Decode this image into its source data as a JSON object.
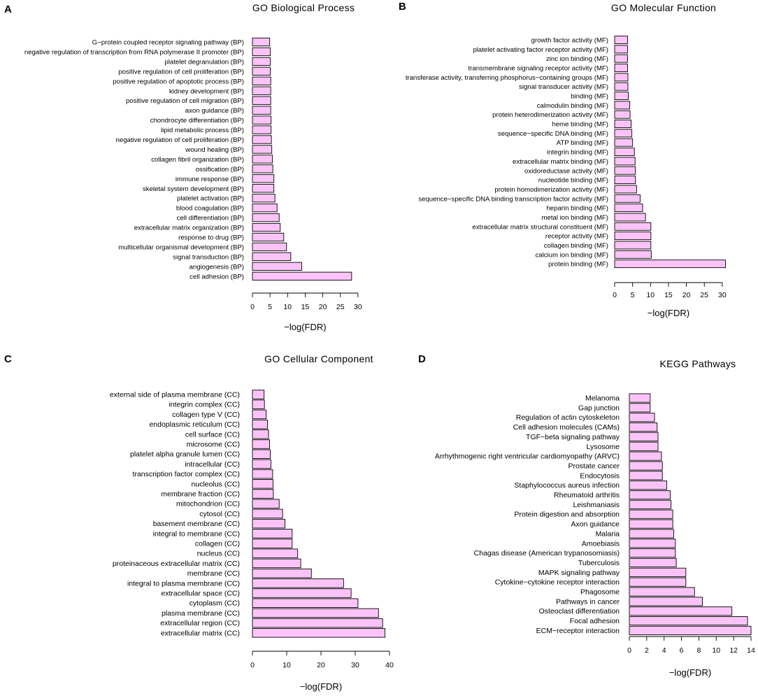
{
  "figure": {
    "axis_label": "−log(FDR)"
  },
  "chart_data": [
    {
      "id": "A",
      "panel_label": "A",
      "type": "bar",
      "orientation": "horizontal",
      "title": "GO Biological Process",
      "xlabel": "−log(FDR)",
      "xlim": [
        0,
        30
      ],
      "ticks": [
        0,
        5,
        10,
        15,
        20,
        25,
        30
      ],
      "grid": false,
      "categories": [
        "G−protein coupled receptor signaling pathway (BP)",
        "negative regulation of transcription from RNA polymerase II promoter (BP)",
        "platelet degranulation (BP)",
        "positive regulation of cell proliferation (BP)",
        "positive regulation of apoptotic process (BP)",
        "kidney development (BP)",
        "positive regulation of cell migration (BP)",
        "axon guidance (BP)",
        "chondrocyte differentiation (BP)",
        "lipid metabolic process (BP)",
        "negative regulation of cell proliferation (BP)",
        "wound healing (BP)",
        "collagen fibril organization (BP)",
        "ossification (BP)",
        "immune response (BP)",
        "skeletal system development (BP)",
        "platelet activation (BP)",
        "blood coagulation (BP)",
        "cell differentiation (BP)",
        "extracellular matrix organization (BP)",
        "response to drug (BP)",
        "multicellular organismal development (BP)",
        "signal transduction (BP)",
        "angiogenesis (BP)",
        "cell adhesion (BP)"
      ],
      "values": [
        4.9,
        5.1,
        5.1,
        5.1,
        5.2,
        5.2,
        5.2,
        5.2,
        5.3,
        5.3,
        5.4,
        5.5,
        5.7,
        5.8,
        6.1,
        6.1,
        6.4,
        7.0,
        7.6,
        7.9,
        8.9,
        9.7,
        10.9,
        14.0,
        28.2
      ]
    },
    {
      "id": "B",
      "panel_label": "B",
      "type": "bar",
      "orientation": "horizontal",
      "title": "GO Molecular Function",
      "xlabel": "−log(FDR)",
      "xlim": [
        0,
        30
      ],
      "ticks": [
        0,
        5,
        10,
        15,
        20,
        25,
        30
      ],
      "grid": false,
      "categories": [
        "growth factor activity (MF)",
        "platelet activating factor receptor activity (MF)",
        "zinc ion binding (MF)",
        "transmembrane signaling receptor activity (MF)",
        "transferase activity, transferring phosphorus−containing groups (MF)",
        "signal transducer activity (MF)",
        "binding (MF)",
        "calmodulin binding (MF)",
        "protein heterodimerization activity (MF)",
        "heme binding (MF)",
        "sequence−specific DNA binding (MF)",
        "ATP binding (MF)",
        "integrin binding (MF)",
        "extracellular matrix binding (MF)",
        "oxidoreductase activity (MF)",
        "nucleotide binding (MF)",
        "protein homodimerization activity (MF)",
        "sequence−specific DNA binding transcription factor activity (MF)",
        "heparin binding (MF)",
        "metal ion binding (MF)",
        "extracellular matrix structural constituent (MF)",
        "receptor activity (MF)",
        "collagen binding (MF)",
        "calcium ion binding (MF)",
        "protein binding (MF)"
      ],
      "values": [
        3.6,
        3.6,
        3.6,
        3.6,
        3.7,
        3.7,
        3.8,
        4.2,
        4.3,
        4.6,
        4.8,
        5.0,
        5.5,
        5.7,
        5.8,
        5.8,
        6.1,
        7.1,
        7.8,
        8.6,
        10.1,
        10.1,
        10.1,
        10.2,
        30.9
      ]
    },
    {
      "id": "C",
      "panel_label": "C",
      "type": "bar",
      "orientation": "horizontal",
      "title": "GO Cellular Component",
      "xlabel": "−log(FDR)",
      "xlim": [
        0,
        40
      ],
      "ticks": [
        0,
        10,
        20,
        30,
        40
      ],
      "grid": false,
      "categories": [
        "external side of plasma membrane (CC)",
        "integrin complex (CC)",
        "collagen type V (CC)",
        "endoplasmic reticulum (CC)",
        "cell surface (CC)",
        "microsome (CC)",
        "platelet alpha granule lumen (CC)",
        "intracellular (CC)",
        "transcription factor complex (CC)",
        "nucleolus (CC)",
        "membrane fraction (CC)",
        "mitochondrion (CC)",
        "cytosol (CC)",
        "basement membrane (CC)",
        "integral to membrane (CC)",
        "collagen (CC)",
        "nucleus (CC)",
        "proteinaceous extracellular matrix (CC)",
        "membrane (CC)",
        "integral to plasma membrane (CC)",
        "extracellular space (CC)",
        "cytoplasm (CC)",
        "plasma membrane (CC)",
        "extracellular region (CC)",
        "extracellular matrix (CC)"
      ],
      "values": [
        3.4,
        3.5,
        4.0,
        4.4,
        4.7,
        5.0,
        5.2,
        5.4,
        5.9,
        6.0,
        6.1,
        7.8,
        8.8,
        9.5,
        11.6,
        11.6,
        13.2,
        14.1,
        17.2,
        26.6,
        28.8,
        30.8,
        36.8,
        38.0,
        38.7
      ]
    },
    {
      "id": "D",
      "panel_label": "D",
      "type": "bar",
      "orientation": "horizontal",
      "title": "KEGG Pathways",
      "xlabel": "−log(FDR)",
      "xlim": [
        0,
        14
      ],
      "ticks": [
        0,
        2,
        4,
        6,
        8,
        10,
        12,
        14
      ],
      "grid": false,
      "categories": [
        "Melanoma",
        "Gap junction",
        "Regulation of actin cytoskeleton",
        "Cell adhesion molecules (CAMs)",
        "TGF−beta signaling pathway",
        "Lysosome",
        "Arrhythmogenic right ventricular cardiomyopathy (ARVC)",
        "Prostate cancer",
        "Endocytosis",
        "Staphylococcus aureus infection",
        "Rheumatoid arthritis",
        "Leishmaniasis",
        "Protein digestion and absorption",
        "Axon guidance",
        "Malaria",
        "Amoebiasis",
        "Chagas disease (American trypanosomiasis)",
        "Tuberculosis",
        "MAPK signaling pathway",
        "Cytokine−cytokine receptor interaction",
        "Phagosome",
        "Pathways in cancer",
        "Osteoclast differentiation",
        "Focal adhesion",
        "ECM−receptor interaction"
      ],
      "values": [
        2.4,
        2.4,
        2.9,
        3.2,
        3.3,
        3.3,
        3.7,
        3.8,
        3.8,
        4.3,
        4.7,
        4.8,
        5.0,
        5.0,
        5.1,
        5.3,
        5.3,
        5.4,
        6.5,
        6.5,
        7.5,
        8.4,
        11.8,
        13.6,
        14.0
      ]
    }
  ]
}
